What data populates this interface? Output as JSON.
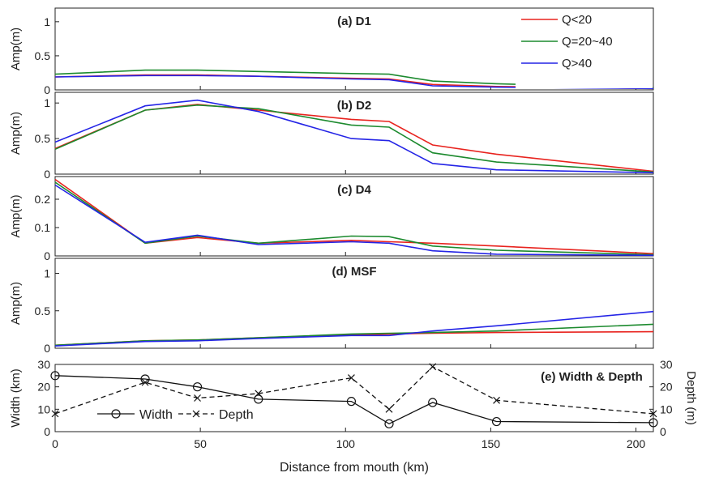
{
  "figure": {
    "xlabel": "Distance from mouth (km)",
    "xlim": [
      0,
      206
    ],
    "xticks": [
      0,
      50,
      100,
      150,
      200
    ]
  },
  "chart_data": [
    {
      "type": "line",
      "title": "(a) D1",
      "ylabel": "Amp(m)",
      "ylim": [
        0,
        1.2
      ],
      "yticks": [
        0,
        0.5,
        1
      ],
      "legend": {
        "position": "top-right",
        "entries": [
          "Q<20",
          "Q=20~40",
          "Q>40"
        ]
      },
      "x": [
        0,
        31,
        49,
        70,
        102,
        115,
        130,
        152,
        206
      ],
      "series": [
        {
          "name": "Q<20",
          "color": "#e8231e",
          "values": [
            0.19,
            0.22,
            0.22,
            0.2,
            0.17,
            0.16,
            0.08,
            0.05,
            0.02
          ]
        },
        {
          "name": "Q=20~40",
          "color": "#1c8a2e",
          "values": [
            0.23,
            0.29,
            0.29,
            0.27,
            0.24,
            0.23,
            0.13,
            0.09,
            0.03
          ]
        },
        {
          "name": "Q>40",
          "color": "#2424e6",
          "values": [
            0.19,
            0.21,
            0.21,
            0.2,
            0.16,
            0.15,
            0.06,
            0.04,
            0.02
          ]
        }
      ]
    },
    {
      "type": "line",
      "title": "(b) D2",
      "ylabel": "Amp(m)",
      "ylim": [
        0,
        1.15
      ],
      "yticks": [
        0,
        0.5,
        1
      ],
      "x": [
        0,
        31,
        49,
        70,
        102,
        115,
        130,
        152,
        206
      ],
      "series": [
        {
          "name": "Q<20",
          "color": "#e8231e",
          "values": [
            0.36,
            0.9,
            0.98,
            0.9,
            0.77,
            0.74,
            0.41,
            0.28,
            0.04
          ]
        },
        {
          "name": "Q=20~40",
          "color": "#1c8a2e",
          "values": [
            0.35,
            0.9,
            0.97,
            0.92,
            0.69,
            0.66,
            0.3,
            0.17,
            0.03
          ]
        },
        {
          "name": "Q>40",
          "color": "#2424e6",
          "values": [
            0.45,
            0.96,
            1.04,
            0.88,
            0.5,
            0.47,
            0.15,
            0.06,
            0.02
          ]
        }
      ]
    },
    {
      "type": "line",
      "title": "(c) D4",
      "ylabel": "Amp(m)",
      "ylim": [
        0,
        0.28
      ],
      "yticks": [
        0,
        0.1,
        0.2
      ],
      "x": [
        0,
        31,
        49,
        70,
        102,
        115,
        130,
        152,
        206
      ],
      "series": [
        {
          "name": "Q<20",
          "color": "#e8231e",
          "values": [
            0.27,
            0.045,
            0.065,
            0.045,
            0.055,
            0.05,
            0.045,
            0.035,
            0.008
          ]
        },
        {
          "name": "Q=20~40",
          "color": "#1c8a2e",
          "values": [
            0.26,
            0.045,
            0.07,
            0.045,
            0.07,
            0.068,
            0.035,
            0.02,
            0.004
          ]
        },
        {
          "name": "Q>40",
          "color": "#2424e6",
          "values": [
            0.25,
            0.048,
            0.073,
            0.04,
            0.05,
            0.045,
            0.018,
            0.006,
            0.002
          ]
        }
      ]
    },
    {
      "type": "line",
      "title": "(d) MSF",
      "ylabel": "Amp(m)",
      "ylim": [
        0,
        1.2
      ],
      "yticks": [
        0,
        0.5,
        1
      ],
      "x": [
        0,
        31,
        49,
        70,
        102,
        115,
        130,
        152,
        206
      ],
      "series": [
        {
          "name": "Q<20",
          "color": "#e8231e",
          "values": [
            0.04,
            0.1,
            0.11,
            0.14,
            0.18,
            0.19,
            0.2,
            0.21,
            0.22
          ]
        },
        {
          "name": "Q=20~40",
          "color": "#1c8a2e",
          "values": [
            0.04,
            0.1,
            0.11,
            0.14,
            0.19,
            0.2,
            0.21,
            0.23,
            0.32
          ]
        },
        {
          "name": "Q>40",
          "color": "#2424e6",
          "values": [
            0.03,
            0.09,
            0.1,
            0.13,
            0.17,
            0.17,
            0.23,
            0.3,
            0.49
          ]
        }
      ]
    },
    {
      "type": "line",
      "title": "(e) Width & Depth",
      "ylabel": "Width (km)",
      "y2label": "Depth (m)",
      "ylim": [
        0,
        30
      ],
      "yticks": [
        0,
        10,
        20,
        30
      ],
      "y2lim": [
        0,
        30
      ],
      "y2ticks": [
        0,
        10,
        20,
        30
      ],
      "legend": {
        "position": "bottom-left",
        "entries": [
          "Width",
          "Depth"
        ]
      },
      "series": [
        {
          "name": "Width",
          "axis": "left",
          "style": "solid",
          "marker": "circle",
          "color": "#111111",
          "x": [
            0,
            31,
            49,
            70,
            102,
            115,
            130,
            152,
            206
          ],
          "values": [
            25,
            23.5,
            20,
            14.5,
            13.5,
            3.5,
            13,
            4.5,
            4
          ]
        },
        {
          "name": "Depth",
          "axis": "right",
          "style": "dashed",
          "marker": "x",
          "color": "#111111",
          "x": [
            0,
            31,
            49,
            70,
            102,
            115,
            130,
            152,
            206
          ],
          "values": [
            8,
            22,
            15,
            17,
            24,
            10,
            29,
            14,
            8
          ]
        }
      ]
    }
  ]
}
